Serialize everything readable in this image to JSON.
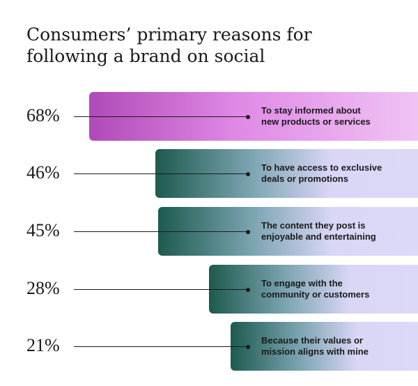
{
  "chart_data": {
    "type": "bar",
    "orientation": "horizontal",
    "title": "Consumers’ primary reasons for following a brand on social",
    "categories": [
      "To stay informed about\nnew products or services",
      "To have access to exclusive\ndeals or promotions",
      "The content they post is\nenjoyable and entertaining",
      "To engage with the\ncommunity or customers",
      "Because their values or\nmission aligns with mine"
    ],
    "values": [
      68,
      46,
      45,
      28,
      21
    ],
    "value_labels": [
      "68%",
      "46%",
      "45%",
      "28%",
      "21%"
    ],
    "colors": [
      "#b04ab8",
      "#1d5a4e",
      "#1d5a4e",
      "#1d5a4e",
      "#1d5a4e"
    ]
  }
}
